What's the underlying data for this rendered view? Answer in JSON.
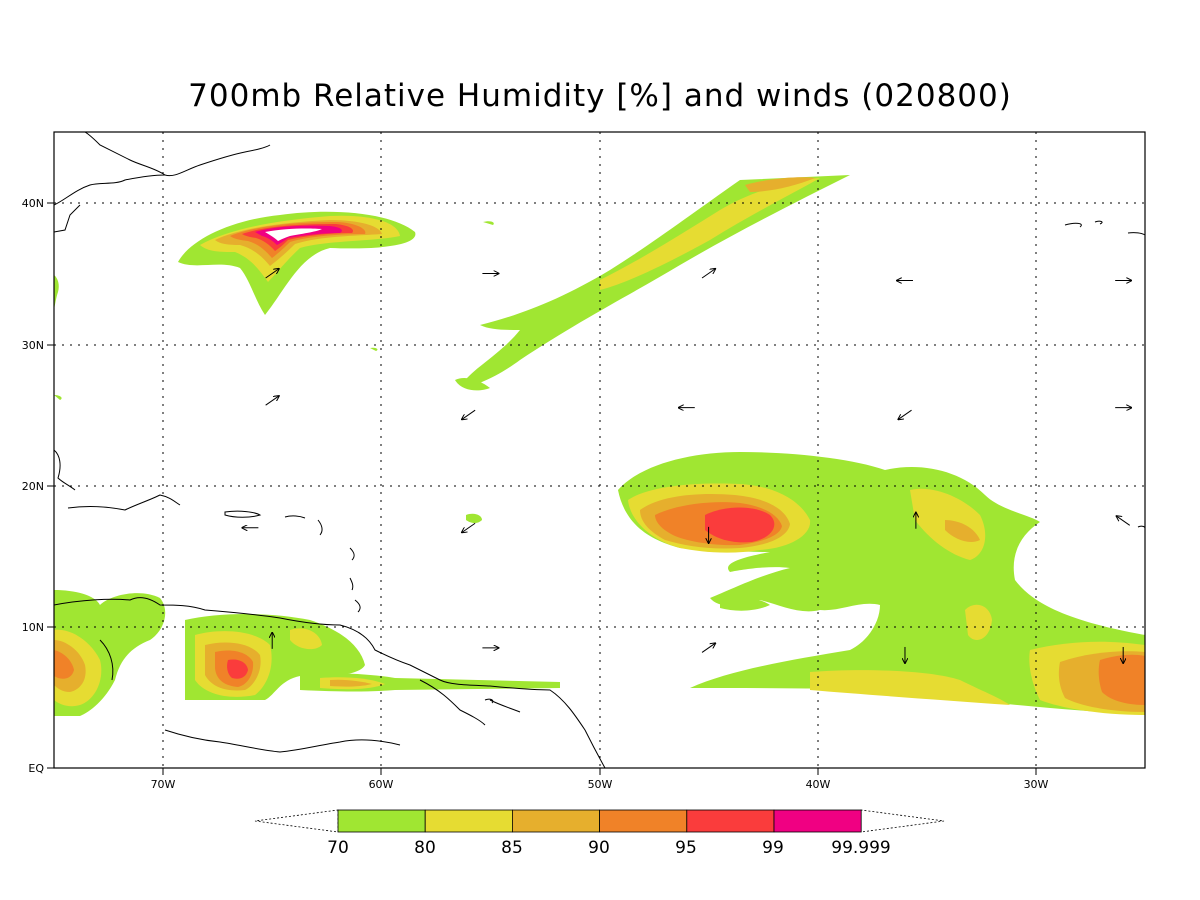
{
  "title": "700mb Relative Humidity [%] and winds (020800)",
  "map": {
    "lat_labels": [
      "EQ",
      "10N",
      "20N",
      "30N",
      "40N"
    ],
    "lon_labels": [
      "70W",
      "60W",
      "50W",
      "40W",
      "30W"
    ]
  },
  "colorbar": {
    "labels": [
      "70",
      "80",
      "85",
      "90",
      "95",
      "99",
      "99.999"
    ],
    "colors": [
      "#a0e632",
      "#e6dc32",
      "#e6af2d",
      "#f08228",
      "#fa3c3c",
      "#f00082"
    ]
  },
  "winds": [
    {
      "lat": 35,
      "lon": -65,
      "dir": "NE"
    },
    {
      "lat": 35,
      "lon": -55,
      "dir": "E"
    },
    {
      "lat": 35,
      "lon": -45,
      "dir": "NE"
    },
    {
      "lat": 34.5,
      "lon": -36,
      "dir": "W"
    },
    {
      "lat": 34.5,
      "lon": -26,
      "dir": "E"
    },
    {
      "lat": 26,
      "lon": -65,
      "dir": "NE"
    },
    {
      "lat": 25,
      "lon": -56,
      "dir": "SW"
    },
    {
      "lat": 25.5,
      "lon": -46,
      "dir": "W"
    },
    {
      "lat": 25,
      "lon": -36,
      "dir": "SW"
    },
    {
      "lat": 25.5,
      "lon": -26,
      "dir": "E"
    },
    {
      "lat": 17,
      "lon": -66,
      "dir": "W"
    },
    {
      "lat": 17,
      "lon": -56,
      "dir": "SW"
    },
    {
      "lat": 16.5,
      "lon": -45,
      "dir": "S"
    },
    {
      "lat": 17.5,
      "lon": -35.5,
      "dir": "N"
    },
    {
      "lat": 17.5,
      "lon": -26,
      "dir": "NW"
    },
    {
      "lat": 9,
      "lon": -65,
      "dir": "N"
    },
    {
      "lat": 8.5,
      "lon": -55,
      "dir": "E"
    },
    {
      "lat": 8.5,
      "lon": -45,
      "dir": "NE"
    },
    {
      "lat": 8,
      "lon": -36,
      "dir": "S"
    },
    {
      "lat": 8,
      "lon": -26,
      "dir": "S"
    }
  ]
}
